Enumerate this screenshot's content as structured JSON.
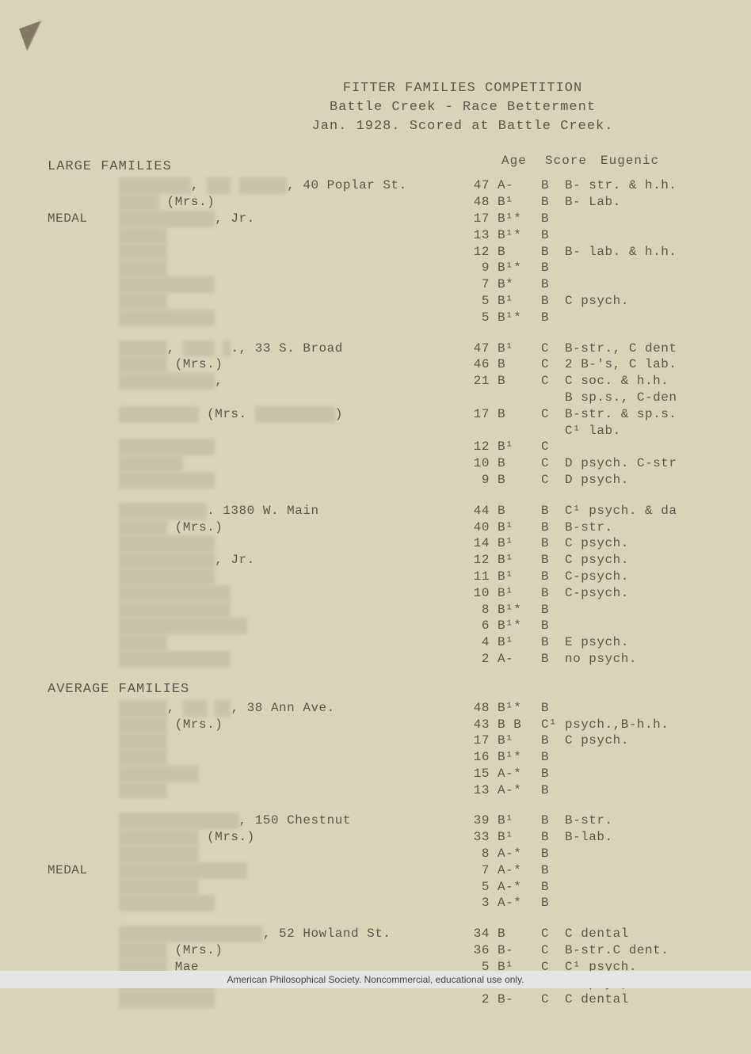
{
  "header": {
    "line1": "FITTER FAMILIES COMPETITION",
    "line2": "Battle Creek - Race Betterment",
    "line3": "Jan. 1928.  Scored at Battle Creek."
  },
  "colHeaders": {
    "age": "Age",
    "score": "Score",
    "eugenic": "Eugenic"
  },
  "sections": [
    {
      "title": "LARGE FAMILIES",
      "families": [
        {
          "label": "MEDAL",
          "rows": [
            {
              "name": "█████████, ███ ██████",
              "addr": ", 40 Poplar St.",
              "age": "47",
              "score": "A-",
              "eug": "B",
              "remarks": "B- str. & h.h."
            },
            {
              "name": "           █████ (Mrs.)",
              "addr": "",
              "age": "48",
              "score": "B¹",
              "eug": "B",
              "remarks": "B- Lab."
            },
            {
              "name": "           ████████████, Jr.",
              "addr": "",
              "age": "17",
              "score": " B¹*",
              "eug": "B",
              "remarks": ""
            },
            {
              "name": "           ██████",
              "addr": "",
              "age": "13",
              "score": "B¹*",
              "eug": "B",
              "remarks": ""
            },
            {
              "name": "           ██████",
              "addr": "",
              "age": "12",
              "score": "B",
              "eug": "B",
              "remarks": "B- lab. & h.h."
            },
            {
              "name": "           ██████",
              "addr": "",
              "age": "9",
              "score": "B¹*",
              "eug": "B",
              "remarks": ""
            },
            {
              "name": "           ████████████",
              "addr": "",
              "age": "7",
              "score": "B*",
              "eug": "B",
              "remarks": ""
            },
            {
              "name": "           ██████",
              "addr": "",
              "age": "5",
              "score": "B¹",
              "eug": "B",
              "remarks": "C psych."
            },
            {
              "name": "           ████████████",
              "addr": "",
              "age": "5",
              "score": "B¹*",
              "eug": "B",
              "remarks": ""
            }
          ]
        },
        {
          "label": "",
          "rows": [
            {
              "name": "██████, ████ █., 33 S. Broad",
              "addr": "",
              "age": "47",
              "score": "B¹",
              "eug": "C",
              "remarks": "B-str., C dent"
            },
            {
              "name": "           ██████ (Mrs.)",
              "addr": "",
              "age": "46",
              "score": "B",
              "eug": "C",
              "remarks": "2 B-'s, C lab."
            },
            {
              "name": "           ████████████,",
              "addr": "",
              "age": "21",
              "score": "B",
              "eug": "C",
              "remarks": "C soc. & h.h."
            },
            {
              "name": "",
              "addr": "",
              "age": "",
              "score": "",
              "eug": "",
              "remarks": "B sp.s., C-den"
            },
            {
              "name": "           ██████████ (Mrs. ██████████)",
              "addr": "",
              "age": "17",
              "score": "B",
              "eug": "C",
              "remarks": "B-str. & sp.s."
            },
            {
              "name": "",
              "addr": "",
              "age": "",
              "score": "",
              "eug": "",
              "remarks": "C¹ lab."
            },
            {
              "name": "           ████████████",
              "addr": "",
              "age": "12",
              "score": "B¹",
              "eug": "C",
              "remarks": ""
            },
            {
              "name": "           ████████",
              "addr": "",
              "age": "10",
              "score": "B",
              "eug": "C",
              "remarks": "D psych. C-str"
            },
            {
              "name": "           ████████████",
              "addr": "",
              "age": "9",
              "score": "B",
              "eug": "C",
              "remarks": "D psych."
            }
          ]
        },
        {
          "label": "",
          "rows": [
            {
              "name": "███████████. 1380 W. Main",
              "addr": "",
              "age": "44",
              "score": "B",
              "eug": "B",
              "remarks": "C¹ psych. & da"
            },
            {
              "name": "           ██████ (Mrs.)",
              "addr": "",
              "age": "40",
              "score": "B¹",
              "eug": "B",
              "remarks": "B-str."
            },
            {
              "name": "           ████████████",
              "addr": "",
              "age": "14",
              "score": "B¹",
              "eug": "B",
              "remarks": "C psych."
            },
            {
              "name": "           ████████████, Jr.",
              "addr": "",
              "age": "12",
              "score": "B¹",
              "eug": "B",
              "remarks": "C psych."
            },
            {
              "name": "           ████████████",
              "addr": "",
              "age": "11",
              "score": "B¹",
              "eug": "B",
              "remarks": "C-psych."
            },
            {
              "name": "           ██████████████",
              "addr": "",
              "age": "10",
              "score": "B¹",
              "eug": "B",
              "remarks": "C-psych."
            },
            {
              "name": "           ██████████████",
              "addr": "",
              "age": "8",
              "score": "B¹*",
              "eug": "B",
              "remarks": ""
            },
            {
              "name": "           ████████████████",
              "addr": "",
              "age": "6",
              "score": "B¹*",
              "eug": "B",
              "remarks": ""
            },
            {
              "name": "           ██████",
              "addr": "",
              "age": "4",
              "score": "B¹",
              "eug": "B",
              "remarks": "E psych."
            },
            {
              "name": "           ██████████████",
              "addr": "",
              "age": "2",
              "score": "A-",
              "eug": "B",
              "remarks": "no psych."
            }
          ]
        }
      ]
    },
    {
      "title": "AVERAGE FAMILIES",
      "families": [
        {
          "label": "",
          "rows": [
            {
              "name": "██████, ███ ██, 38 Ann Ave.",
              "addr": "",
              "age": "48",
              "score": "B¹*",
              "eug": "B",
              "remarks": ""
            },
            {
              "name": "           ██████ (Mrs.)",
              "addr": "",
              "age": "43",
              "score": "B B",
              "eug": "C¹",
              "remarks": "psych.,B-h.h."
            },
            {
              "name": "           ██████",
              "addr": "",
              "age": "17",
              "score": "B¹",
              "eug": "B",
              "remarks": "C psych."
            },
            {
              "name": "           ██████",
              "addr": "",
              "age": "16",
              "score": "B¹*",
              "eug": "B",
              "remarks": ""
            },
            {
              "name": "           ██████████",
              "addr": "",
              "age": "15",
              "score": "A-*",
              "eug": "B",
              "remarks": ""
            },
            {
              "name": "           ██████",
              "addr": "",
              "age": "13",
              "score": "A-*",
              "eug": "B",
              "remarks": ""
            }
          ]
        },
        {
          "label": "MEDAL",
          "rows": [
            {
              "name": "███████████████, 150 Chestnut",
              "addr": "",
              "age": "39",
              "score": "B¹",
              "eug": "B",
              "remarks": "B-str."
            },
            {
              "name": "           ██████████ (Mrs.)",
              "addr": "",
              "age": "33",
              "score": "B¹",
              "eug": "B",
              "remarks": "B-lab."
            },
            {
              "name": "           ██████████",
              "addr": "",
              "age": "8",
              "score": "A-*",
              "eug": "B",
              "remarks": ""
            },
            {
              "name": "           ████████████████",
              "addr": "",
              "age": "7",
              "score": "A-*",
              "eug": "B",
              "remarks": ""
            },
            {
              "name": "           ██████████",
              "addr": "",
              "age": "5",
              "score": "A-*",
              "eug": "B",
              "remarks": ""
            },
            {
              "name": "           ████████████",
              "addr": "",
              "age": "3",
              "score": "A-*",
              "eug": "B",
              "remarks": ""
            }
          ]
        },
        {
          "label": "",
          "rows": [
            {
              "name": "██████████████████, 52 Howland St.",
              "addr": "",
              "age": "34",
              "score": "B",
              "eug": "C",
              "remarks": "C dental"
            },
            {
              "name": "           ██████ (Mrs.)",
              "addr": "",
              "age": "36",
              "score": "B-",
              "eug": "C",
              "remarks": "B-str.C dent."
            },
            {
              "name": "           ██████ Mae",
              "addr": "",
              "age": "5",
              "score": "B¹",
              "eug": "C",
              "remarks": "C¹ psych."
            },
            {
              "name": "           ████████████",
              "addr": "",
              "age": "3",
              "score": "B-",
              "eug": "C",
              "remarks": "C¹ psy., C den"
            },
            {
              "name": "           ████████████",
              "addr": "",
              "age": "2",
              "score": "B-",
              "eug": "C",
              "remarks": "C dental"
            }
          ]
        }
      ]
    }
  ],
  "footer": "American Philosophical Society.  Noncommercial, educational use only."
}
